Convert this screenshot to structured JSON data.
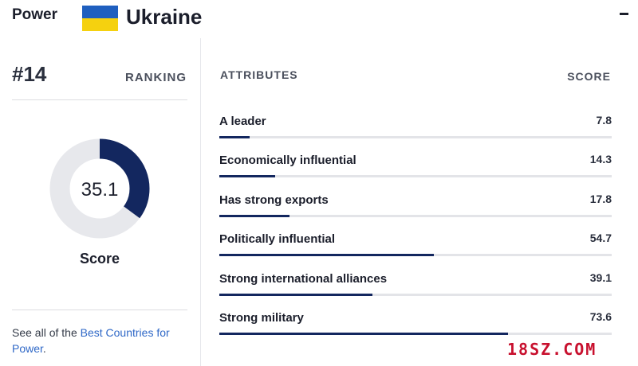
{
  "header": {
    "category": "Power",
    "country": "Ukraine",
    "flag_colors": {
      "top": "#1f5fbf",
      "bottom": "#f5d10f"
    }
  },
  "ranking": {
    "rank": "#14",
    "label": "RANKING"
  },
  "overall": {
    "value": "35.1",
    "score": 35.1,
    "max": 100,
    "label": "Score",
    "color": "#13275f",
    "track_color": "#e7e8ec"
  },
  "footer": {
    "text_prefix": "See all of the ",
    "link_text": "Best Countries for Power",
    "suffix": "."
  },
  "attributes": {
    "header_label": "ATTRIBUTES",
    "score_label": "SCORE",
    "items": [
      {
        "name": "A leader",
        "score": "7.8",
        "value": 7.8
      },
      {
        "name": "Economically influential",
        "score": "14.3",
        "value": 14.3
      },
      {
        "name": "Has strong exports",
        "score": "17.8",
        "value": 17.8
      },
      {
        "name": "Politically influential",
        "score": "54.7",
        "value": 54.7
      },
      {
        "name": "Strong international alliances",
        "score": "39.1",
        "value": 39.1
      },
      {
        "name": "Strong military",
        "score": "73.6",
        "value": 73.6
      }
    ]
  },
  "watermark": "18SZ.COM"
}
